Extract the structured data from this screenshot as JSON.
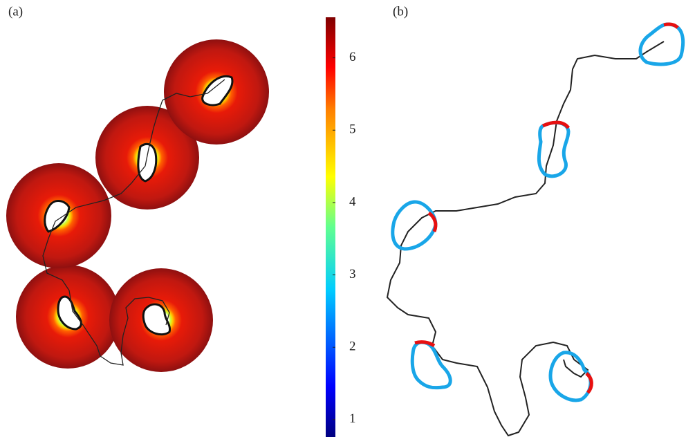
{
  "panels": [
    {
      "label": "(a)"
    },
    {
      "label": "(b)"
    }
  ],
  "colorbar": {
    "ylim": [
      0.76,
      6.56
    ],
    "yticks": [
      1,
      2,
      3,
      4,
      5,
      6
    ]
  }
}
